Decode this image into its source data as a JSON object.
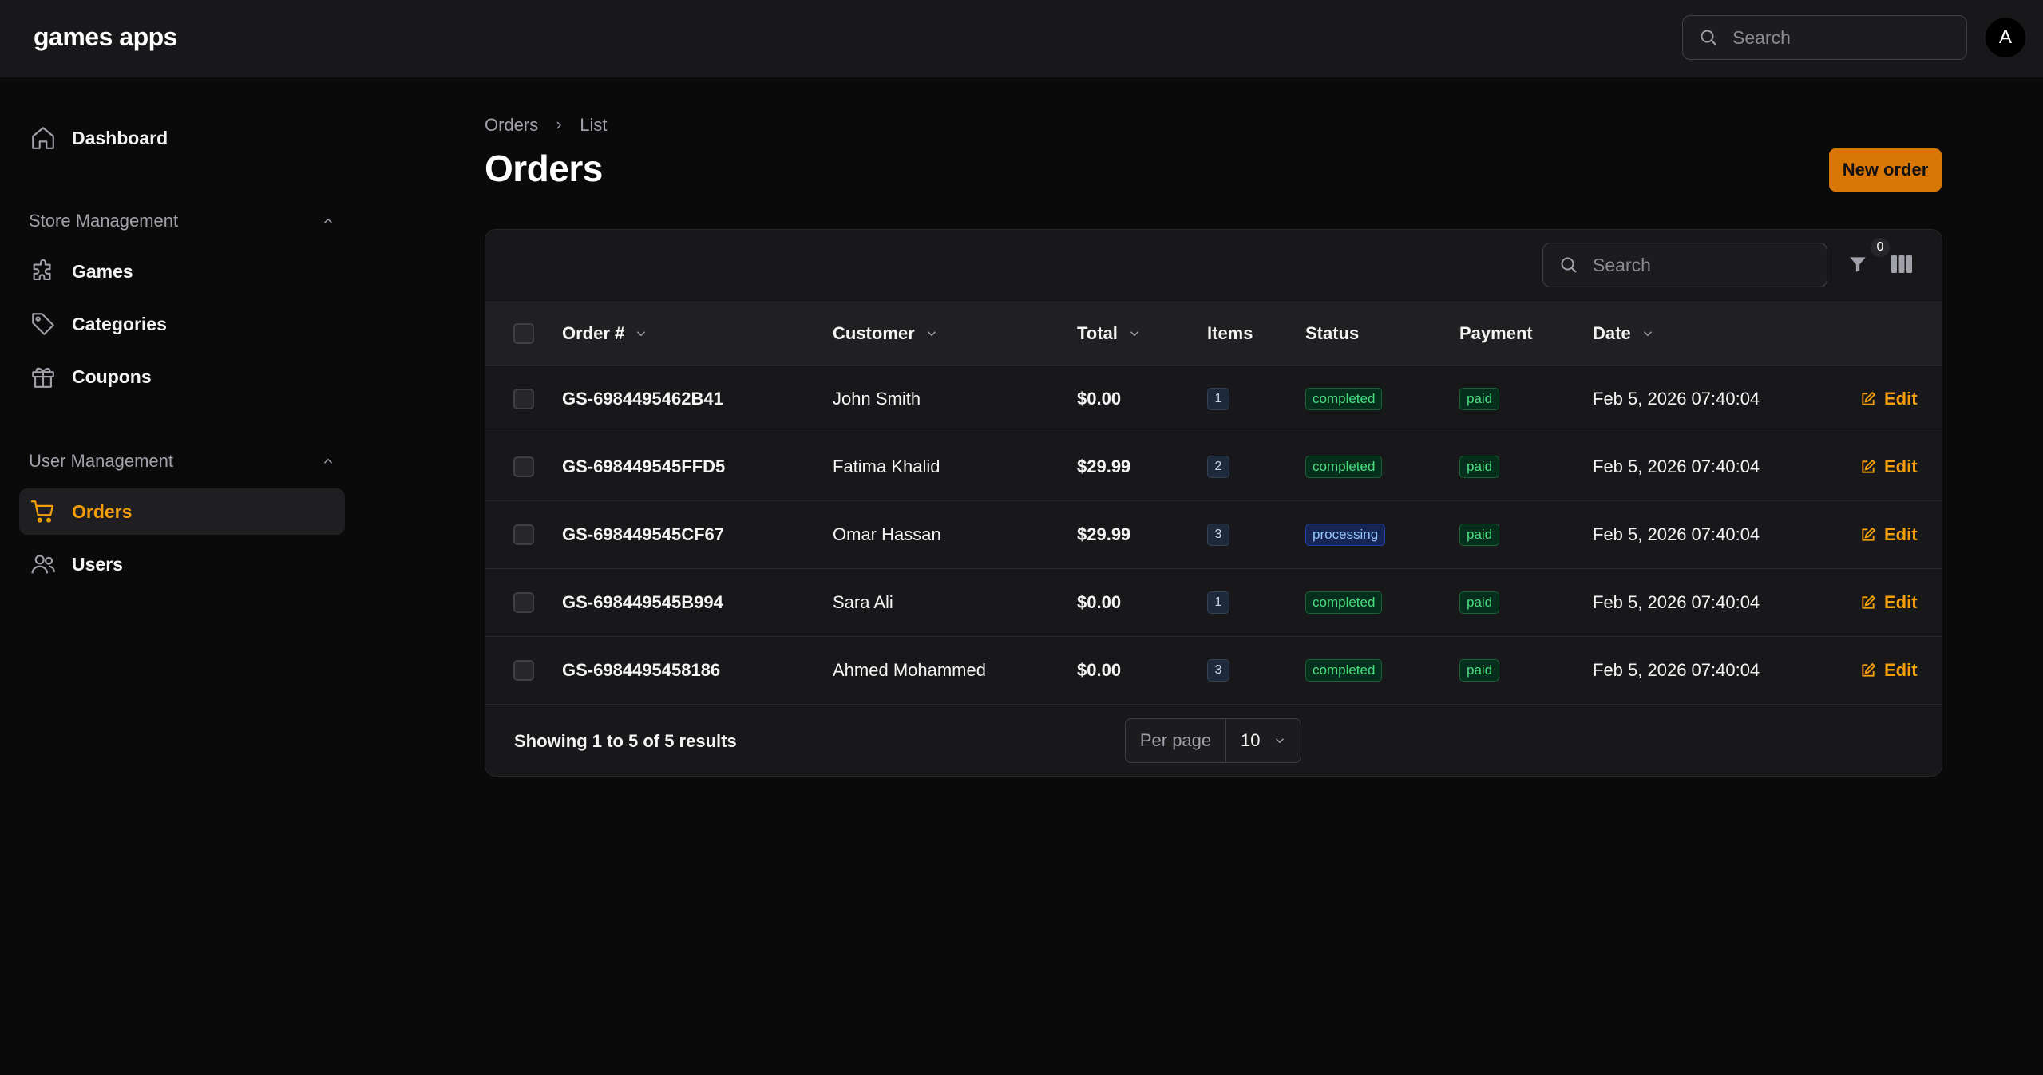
{
  "app": {
    "brand": "games apps",
    "search_placeholder": "Search",
    "avatar_initial": "A"
  },
  "sidebar": {
    "dashboard": "Dashboard",
    "store_group": "Store Management",
    "store_items": [
      "Games",
      "Categories",
      "Coupons"
    ],
    "user_group": "User Management",
    "user_items": [
      "Orders",
      "Users"
    ],
    "active": "Orders"
  },
  "breadcrumb": [
    "Orders",
    "List"
  ],
  "page": {
    "title": "Orders",
    "new_button": "New order"
  },
  "table": {
    "search_placeholder": "Search",
    "filter_count": "0",
    "columns": [
      "Order #",
      "Customer",
      "Total",
      "Items",
      "Status",
      "Payment",
      "Date"
    ],
    "edit_label": "Edit",
    "rows": [
      {
        "order": "GS-6984495462B41",
        "customer": "John Smith",
        "total": "$0.00",
        "items": "1",
        "status": "completed",
        "payment": "paid",
        "date": "Feb 5, 2026 07:40:04"
      },
      {
        "order": "GS-698449545FFD5",
        "customer": "Fatima Khalid",
        "total": "$29.99",
        "items": "2",
        "status": "completed",
        "payment": "paid",
        "date": "Feb 5, 2026 07:40:04"
      },
      {
        "order": "GS-698449545CF67",
        "customer": "Omar Hassan",
        "total": "$29.99",
        "items": "3",
        "status": "processing",
        "payment": "paid",
        "date": "Feb 5, 2026 07:40:04"
      },
      {
        "order": "GS-698449545B994",
        "customer": "Sara Ali",
        "total": "$0.00",
        "items": "1",
        "status": "completed",
        "payment": "paid",
        "date": "Feb 5, 2026 07:40:04"
      },
      {
        "order": "GS-6984495458186",
        "customer": "Ahmed Mohammed",
        "total": "$0.00",
        "items": "3",
        "status": "completed",
        "payment": "paid",
        "date": "Feb 5, 2026 07:40:04"
      }
    ]
  },
  "footer": {
    "showing": "Showing 1 to 5 of 5 results",
    "per_page_label": "Per page",
    "per_page_value": "10"
  },
  "colors": {
    "accent": "#f59e0b",
    "button": "#d97706",
    "success": "#4ade80",
    "info": "#93c5fd",
    "background": "#0a0a0b",
    "surface": "#18181b"
  }
}
